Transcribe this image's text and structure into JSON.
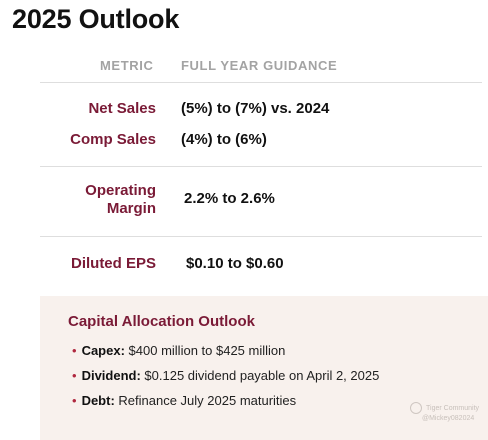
{
  "title": "2025 Outlook",
  "columns": {
    "metric": "METRIC",
    "guidance": "FULL YEAR GUIDANCE"
  },
  "rows": [
    {
      "metric": "Net Sales",
      "value": "(5%) to (7%) vs. 2024"
    },
    {
      "metric": "Comp Sales",
      "value": "(4%) to (6%)"
    },
    {
      "metric_line1": "Operating",
      "metric_line2": "Margin",
      "value": "2.2% to 2.6%"
    },
    {
      "metric": "Diluted EPS",
      "value": "$0.10 to $0.60"
    }
  ],
  "capital": {
    "title": "Capital Allocation Outlook",
    "items": [
      {
        "label": "Capex:",
        "text": "$400 million to $425 million"
      },
      {
        "label": "Dividend:",
        "text": "$0.125 dividend payable on April 2, 2025"
      },
      {
        "label": "Debt:",
        "text": "Refinance July 2025 maturities"
      }
    ]
  },
  "watermark": {
    "line1": "Tiger Community",
    "line2": "@Mickey082024"
  },
  "colors": {
    "accent": "#7a1a36",
    "panel": "#f8f1ed",
    "header_text": "#a3a3a3"
  }
}
